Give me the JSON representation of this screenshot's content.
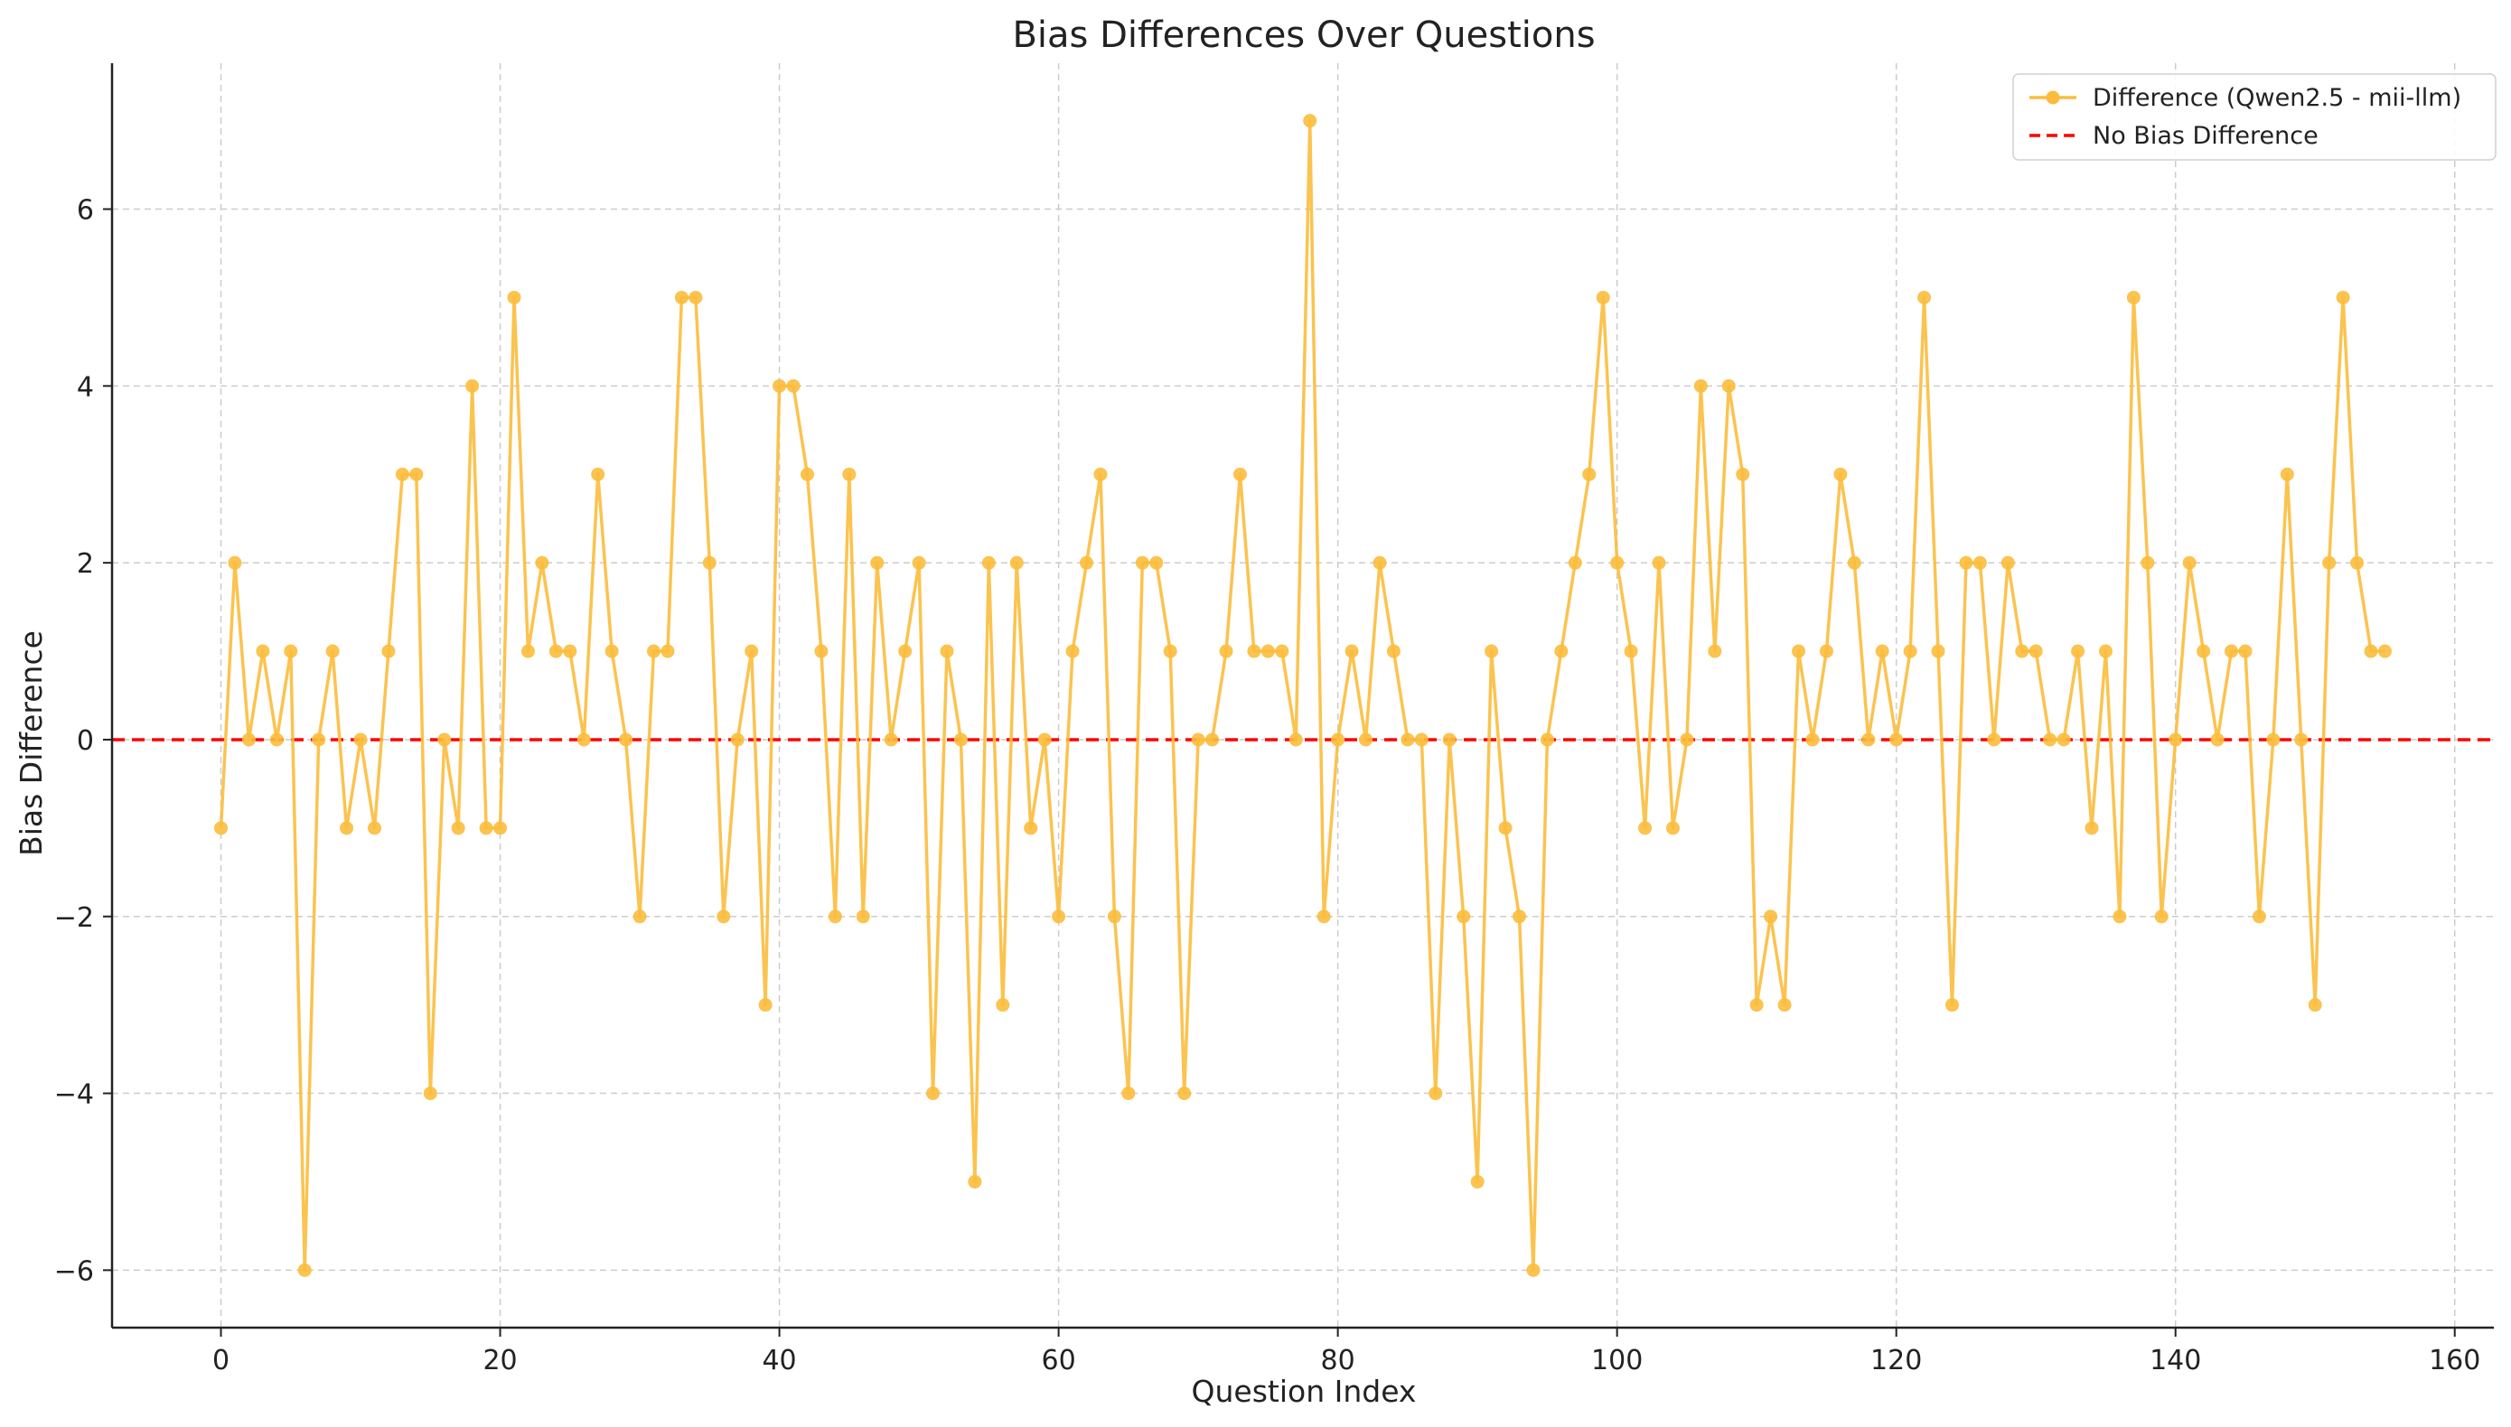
{
  "chart_data": {
    "type": "line",
    "title": "Bias Differences Over Questions",
    "xlabel": "Question Index",
    "ylabel": "Bias Difference",
    "xlim": [
      -7.8,
      162.8
    ],
    "ylim": [
      -6.65,
      7.65
    ],
    "xticks": [
      0,
      20,
      40,
      60,
      80,
      100,
      120,
      140,
      160
    ],
    "yticks": [
      -6,
      -4,
      -2,
      0,
      2,
      4,
      6
    ],
    "ytick_labels": [
      "−6",
      "−4",
      "−2",
      "0",
      "2",
      "4",
      "6"
    ],
    "grid": true,
    "legend_position": "top-right",
    "series": [
      {
        "name": "Difference (Qwen2.5 - mii-llm)",
        "color": "#FBBC3C",
        "marker": "circle",
        "x": [
          0,
          1,
          2,
          3,
          4,
          5,
          6,
          7,
          8,
          9,
          10,
          11,
          12,
          13,
          14,
          15,
          16,
          17,
          18,
          19,
          20,
          21,
          22,
          23,
          24,
          25,
          26,
          27,
          28,
          29,
          30,
          31,
          32,
          33,
          34,
          35,
          36,
          37,
          38,
          39,
          40,
          41,
          42,
          43,
          44,
          45,
          46,
          47,
          48,
          49,
          50,
          51,
          52,
          53,
          54,
          55,
          56,
          57,
          58,
          59,
          60,
          61,
          62,
          63,
          64,
          65,
          66,
          67,
          68,
          69,
          70,
          71,
          72,
          73,
          74,
          75,
          76,
          77,
          78,
          79,
          80,
          81,
          82,
          83,
          84,
          85,
          86,
          87,
          88,
          89,
          90,
          91,
          92,
          93,
          94,
          95,
          96,
          97,
          98,
          99,
          100,
          101,
          102,
          103,
          104,
          105,
          106,
          107,
          108,
          109,
          110,
          111,
          112,
          113,
          114,
          115,
          116,
          117,
          118,
          119,
          120,
          121,
          122,
          123,
          124,
          125,
          126,
          127,
          128,
          129,
          130,
          131,
          132,
          133,
          134,
          135,
          136,
          137,
          138,
          139,
          140,
          141,
          142,
          143,
          144,
          145,
          146,
          147,
          148,
          149,
          150,
          151,
          152,
          153,
          154,
          155
        ],
        "values": [
          -1,
          2,
          0,
          1,
          0,
          1,
          -6,
          0,
          1,
          -1,
          0,
          -1,
          1,
          3,
          3,
          -4,
          0,
          -1,
          4,
          -1,
          -1,
          5,
          1,
          2,
          1,
          1,
          0,
          3,
          1,
          0,
          -2,
          1,
          1,
          5,
          5,
          2,
          -2,
          0,
          1,
          -3,
          4,
          4,
          3,
          1,
          -2,
          3,
          -2,
          2,
          0,
          1,
          2,
          -4,
          1,
          0,
          -5,
          2,
          -3,
          2,
          -1,
          0,
          -2,
          1,
          2,
          3,
          -2,
          -4,
          2,
          2,
          1,
          -4,
          0,
          0,
          1,
          3,
          1,
          1,
          1,
          0,
          7,
          -2,
          0,
          1,
          0,
          2,
          1,
          0,
          0,
          -4,
          0,
          -2,
          -5,
          1,
          -1,
          -2,
          -6,
          0,
          1,
          2,
          3,
          5,
          2,
          1,
          -1,
          2,
          -1,
          0,
          4,
          1,
          4,
          3,
          -3,
          -2,
          -3,
          1,
          0,
          1,
          3,
          2,
          0,
          1,
          0,
          1,
          5,
          1,
          -3,
          2,
          2,
          0,
          2,
          1,
          1,
          0,
          0,
          1,
          -1,
          1,
          -2,
          5,
          2,
          -2,
          0,
          2,
          1,
          0,
          1,
          1,
          -2,
          0,
          3,
          0,
          -3,
          2,
          5,
          2,
          1,
          1
        ]
      },
      {
        "name": "No Bias Difference",
        "color": "#FF0000",
        "style": "dashed",
        "y": 0
      }
    ]
  }
}
